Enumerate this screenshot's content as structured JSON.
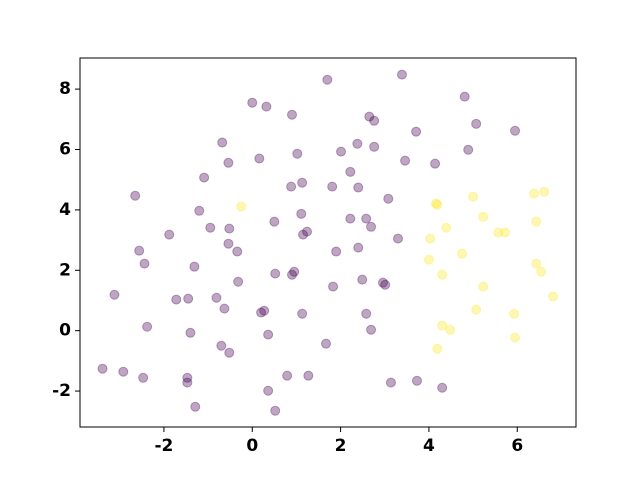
{
  "chart_data": {
    "type": "scatter",
    "xlim": [
      -3.9,
      7.33
    ],
    "ylim": [
      -3.19,
      9.03
    ],
    "xticks": [
      -2,
      0,
      2,
      4,
      6
    ],
    "yticks": [
      -2,
      0,
      2,
      4,
      6,
      8
    ],
    "alpha": 0.35,
    "series": [
      {
        "color": "#440154",
        "x": [
          1.7,
          3.39,
          4.81,
          0,
          0.32,
          0.9,
          2.65,
          2.76,
          5.07,
          3.71,
          5.95,
          -0.68,
          2.38,
          2.76,
          2.01,
          4.89,
          1.02,
          0.16,
          -0.54,
          3.46,
          4.14,
          2.22,
          -1.09,
          1.13,
          0.88,
          1.81,
          2.4,
          -2.65,
          3.08,
          -1.2,
          1.11,
          2.22,
          2.58,
          0.5,
          2.69,
          -0.95,
          -0.52,
          1.24,
          1.15,
          -1.88,
          3.3,
          -0.54,
          2.4,
          -2.56,
          -0.34,
          1.9,
          -2.44,
          -1.31,
          0.95,
          0.52,
          0.9,
          2.49,
          -0.32,
          2.96,
          3.01,
          1.83,
          -3.12,
          -0.81,
          -1.72,
          -1.45,
          -0.63,
          0.27,
          0.2,
          1.13,
          2.58,
          -2.38,
          2.69,
          -1.4,
          0.36,
          -0.7,
          1.67,
          -0.52,
          -3.39,
          -2.92,
          -2.47,
          0.79,
          1.27,
          -1.47,
          -1.47,
          3.14,
          3.73,
          0.36,
          4.3,
          -1.29,
          0.52
        ],
        "y": [
          8.31,
          8.48,
          7.75,
          7.55,
          7.42,
          7.15,
          7.09,
          6.95,
          6.85,
          6.59,
          6.62,
          6.23,
          6.19,
          6.09,
          5.93,
          5.99,
          5.86,
          5.7,
          5.56,
          5.63,
          5.53,
          5.26,
          5.07,
          4.9,
          4.77,
          4.77,
          4.74,
          4.47,
          4.37,
          3.97,
          3.87,
          3.71,
          3.71,
          3.61,
          3.44,
          3.41,
          3.38,
          3.28,
          3.18,
          3.18,
          3.05,
          2.88,
          2.75,
          2.65,
          2.62,
          2.62,
          2.22,
          2.12,
          1.95,
          1.89,
          1.85,
          1.69,
          1.62,
          1.59,
          1.52,
          1.46,
          1.19,
          1.09,
          1.03,
          1.06,
          0.73,
          0.66,
          0.6,
          0.56,
          0.56,
          0.13,
          0.03,
          -0.07,
          -0.13,
          -0.5,
          -0.43,
          -0.73,
          -1.26,
          -1.36,
          -1.56,
          -1.49,
          -1.49,
          -1.56,
          -1.72,
          -1.72,
          -1.66,
          -1.99,
          -1.89,
          -2.52,
          -2.65
        ]
      },
      {
        "color": "#fde725",
        "x": [
          -0.25,
          4.16,
          4.19,
          5.0,
          6.38,
          6.61,
          5.23,
          6.43,
          4.39,
          5.57,
          5.72,
          4.03,
          4.75,
          4.0,
          6.43,
          6.54,
          4.3,
          5.23,
          6.81,
          5.07,
          5.93,
          4.3,
          4.48,
          5.95,
          4.19
        ],
        "y": [
          4.11,
          4.21,
          4.17,
          4.44,
          4.54,
          4.6,
          3.77,
          3.61,
          3.41,
          3.25,
          3.25,
          3.05,
          2.55,
          2.35,
          2.22,
          1.95,
          1.85,
          1.46,
          1.13,
          0.7,
          0.56,
          0.17,
          0.03,
          -0.23,
          -0.6
        ]
      }
    ]
  }
}
